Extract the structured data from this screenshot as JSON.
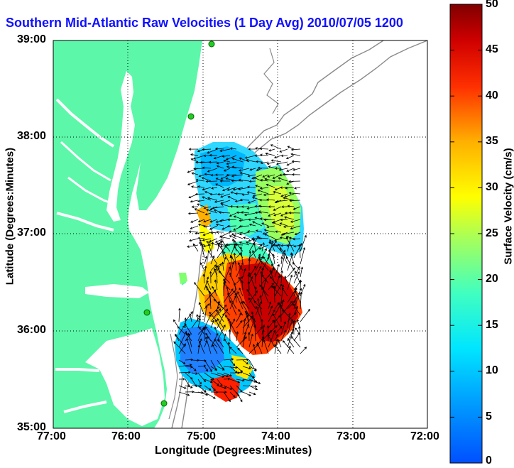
{
  "title": "Southern Mid-Atlantic Raw Velocities (1 Day Avg) 2010/07/05 1200 GMT",
  "title_visible": "Southern Mid-Atlantic Raw Velocities (1 Day Avg) 2010/07/05 1200",
  "x_axis": {
    "label": "Longitude (Degrees:Minutes)",
    "ticks": [
      "77:00",
      "76:00",
      "75:00",
      "74:00",
      "73:00",
      "72:00"
    ]
  },
  "y_axis": {
    "label": "Latitude (Degrees:Minutes)",
    "ticks": [
      "39:00",
      "38:00",
      "37:00",
      "36:00",
      "35:00"
    ]
  },
  "colorbar": {
    "label": "Surface Velocity (cm/s)",
    "ticks": [
      "50",
      "45",
      "40",
      "35",
      "30",
      "25",
      "20",
      "15",
      "10",
      "5",
      "0"
    ],
    "range": [
      0,
      50
    ],
    "colormap": "jet"
  },
  "colors": {
    "land": "#5cf7a9",
    "title": "#1010ff",
    "bathymetry": "#8a8a8a",
    "station": "#22cc22"
  },
  "map": {
    "lon_range": [
      "-77:00",
      "-72:00"
    ],
    "lat_range": [
      "35:00",
      "39:00"
    ],
    "grid": "dotted"
  }
}
